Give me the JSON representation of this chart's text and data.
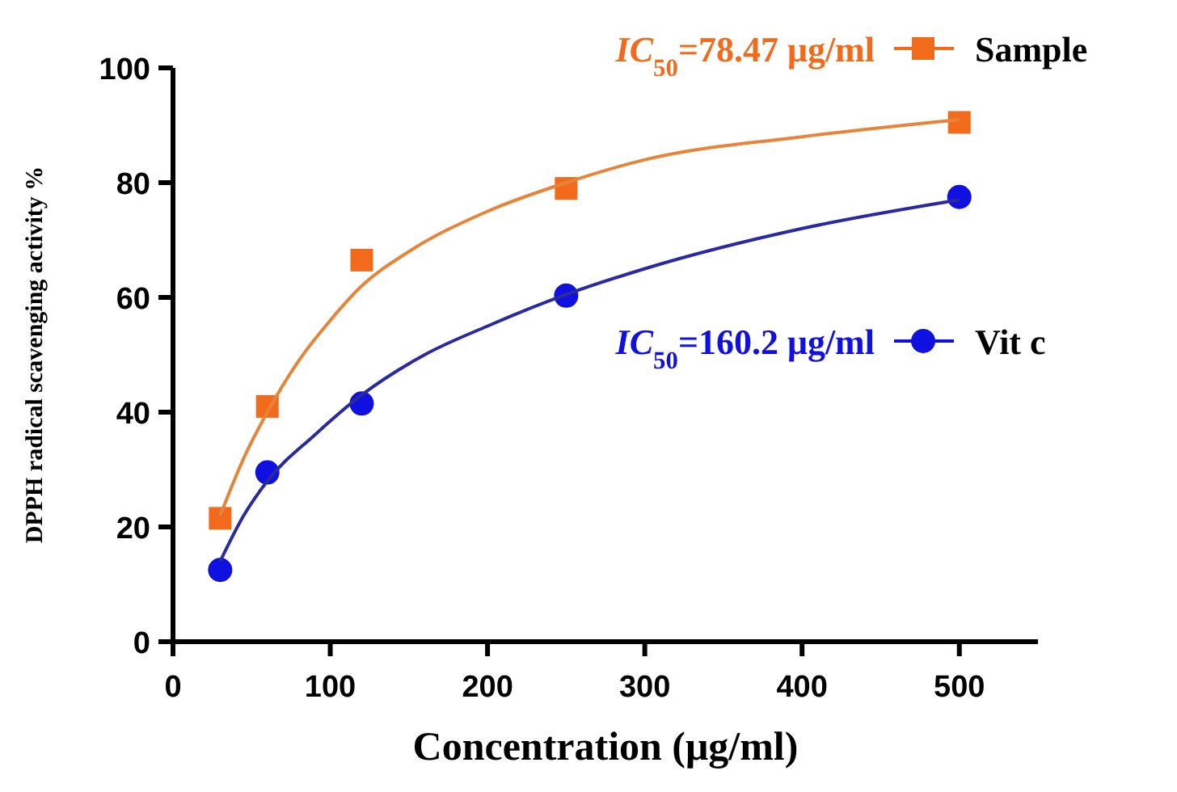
{
  "chart_data": {
    "type": "scatter",
    "xlabel": "Concentration (μg/ml)",
    "ylabel": "DPPH radical scavenging activity %",
    "xlim": [
      0,
      550
    ],
    "xticks": [
      0,
      100,
      200,
      300,
      400,
      500
    ],
    "ylim": [
      0,
      100
    ],
    "yticks": [
      0,
      20,
      40,
      60,
      80,
      100
    ],
    "grid": false,
    "legend": "right",
    "annotations": [
      "IC$_{50}$=78.47 μg/ml",
      "IC$_{50}$=160.2 μg/ml"
    ],
    "series": [
      {
        "name": "Sample",
        "color": "#f26b1d",
        "marker": "square",
        "x": [
          30,
          60,
          120,
          250,
          500
        ],
        "values": [
          21.5,
          41,
          66.5,
          79,
          90.5
        ]
      },
      {
        "name": "Vit c",
        "color": "#1010e0",
        "marker": "circle",
        "x": [
          30,
          60,
          120,
          250,
          500
        ],
        "values": [
          12.5,
          29.5,
          41.5,
          60.3,
          77.5
        ]
      },
      {
        "type": "line",
        "color": "#e8843a",
        "x": [
          30,
          45,
          60,
          80,
          100,
          120,
          150,
          200,
          250,
          300,
          400,
          500
        ],
        "values": [
          22,
          32,
          40,
          49,
          56,
          62,
          68,
          75,
          80,
          84,
          88,
          91
        ]
      },
      {
        "type": "line",
        "color": "#2a2aa0",
        "x": [
          30,
          45,
          60,
          90,
          120,
          160,
          200,
          250,
          300,
          400,
          500
        ],
        "values": [
          14,
          22,
          28,
          36,
          43,
          50,
          55,
          60.5,
          65,
          72,
          77
        ]
      }
    ]
  }
}
